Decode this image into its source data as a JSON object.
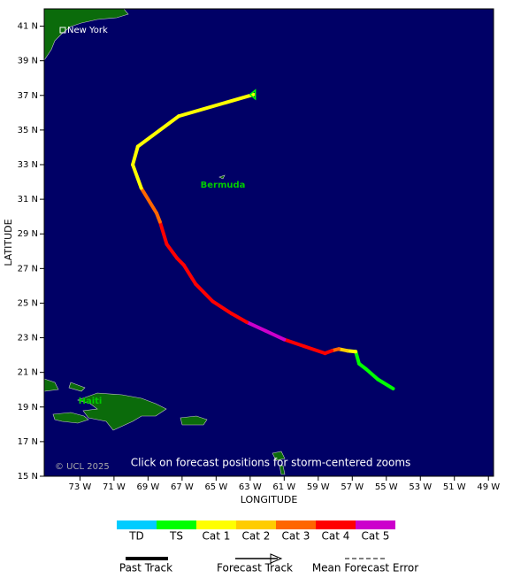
{
  "map": {
    "ylabel": "LATITUDE",
    "xlabel": "LONGITUDE",
    "xlim": [
      75.1,
      48.7
    ],
    "ylim": [
      15,
      42
    ],
    "xticks": [
      {
        "value": 73,
        "label": "73 W"
      },
      {
        "value": 71,
        "label": "71 W"
      },
      {
        "value": 69,
        "label": "69 W"
      },
      {
        "value": 67,
        "label": "67 W"
      },
      {
        "value": 65,
        "label": "65 W"
      },
      {
        "value": 63,
        "label": "63 W"
      },
      {
        "value": 61,
        "label": "61 W"
      },
      {
        "value": 59,
        "label": "59 W"
      },
      {
        "value": 57,
        "label": "57 W"
      },
      {
        "value": 55,
        "label": "55 W"
      },
      {
        "value": 53,
        "label": "53 W"
      },
      {
        "value": 51,
        "label": "51 W"
      },
      {
        "value": 49,
        "label": "49 W"
      }
    ],
    "yticks": [
      {
        "value": 15,
        "label": "15 N"
      },
      {
        "value": 17,
        "label": "17 N"
      },
      {
        "value": 19,
        "label": "19 N"
      },
      {
        "value": 21,
        "label": "21 N"
      },
      {
        "value": 23,
        "label": "23 N"
      },
      {
        "value": 25,
        "label": "25 N"
      },
      {
        "value": 27,
        "label": "27 N"
      },
      {
        "value": 29,
        "label": "29 N"
      },
      {
        "value": 31,
        "label": "31 N"
      },
      {
        "value": 33,
        "label": "33 N"
      },
      {
        "value": 35,
        "label": "35 N"
      },
      {
        "value": 37,
        "label": "37 N"
      },
      {
        "value": 39,
        "label": "39 N"
      },
      {
        "value": 41,
        "label": "41 N"
      }
    ],
    "places": {
      "new_york": "New York",
      "bermuda": "Bermuda",
      "haiti": "Haiti"
    },
    "copyright": "© UCL 2025",
    "note": "Click on forecast positions for storm-centered zooms",
    "track": {
      "lon_w": [
        54.6,
        55.5,
        56.2,
        56.6,
        56.8,
        57.3,
        57.8,
        58.2,
        58.6,
        59.8,
        61.0,
        62.1,
        63.2,
        64.1,
        65.2,
        66.2,
        66.9,
        67.3,
        67.9,
        68.3,
        68.5,
        69.4,
        69.9,
        69.6,
        67.2,
        62.8
      ],
      "lat": [
        20.06,
        20.6,
        21.2,
        21.5,
        22.2,
        22.25,
        22.35,
        22.25,
        22.1,
        22.5,
        22.9,
        23.4,
        23.9,
        24.4,
        25.1,
        26.1,
        27.2,
        27.6,
        28.4,
        29.7,
        30.2,
        31.65,
        33.0,
        34.05,
        35.8,
        37.05
      ],
      "category": [
        "TS",
        "TS",
        "TS",
        "TS",
        "TS",
        "Cat 1",
        "Cat 2",
        "Cat 3",
        "Cat 4",
        "Cat 4",
        "Cat 4",
        "Cat 5",
        "Cat 5",
        "Cat 4",
        "Cat 4",
        "Cat 4",
        "Cat 4",
        "Cat 4",
        "Cat 4",
        "Cat 4",
        "Cat 3",
        "Cat 3",
        "Cat 1",
        "Cat 1",
        "Cat 1",
        "Cat 1"
      ]
    },
    "legend": [
      {
        "name": "TD",
        "color": "#00ccff"
      },
      {
        "name": "TS",
        "color": "#00ff00"
      },
      {
        "name": "Cat 1",
        "color": "#ffff00"
      },
      {
        "name": "Cat 2",
        "color": "#ffcc00"
      },
      {
        "name": "Cat 3",
        "color": "#ff6600"
      },
      {
        "name": "Cat 4",
        "color": "#ff0000"
      },
      {
        "name": "Cat 5",
        "color": "#cc00cc"
      }
    ],
    "line_legend": {
      "past": "Past Track",
      "forecast": "Forecast Track",
      "error": "Mean Forecast Error"
    }
  }
}
